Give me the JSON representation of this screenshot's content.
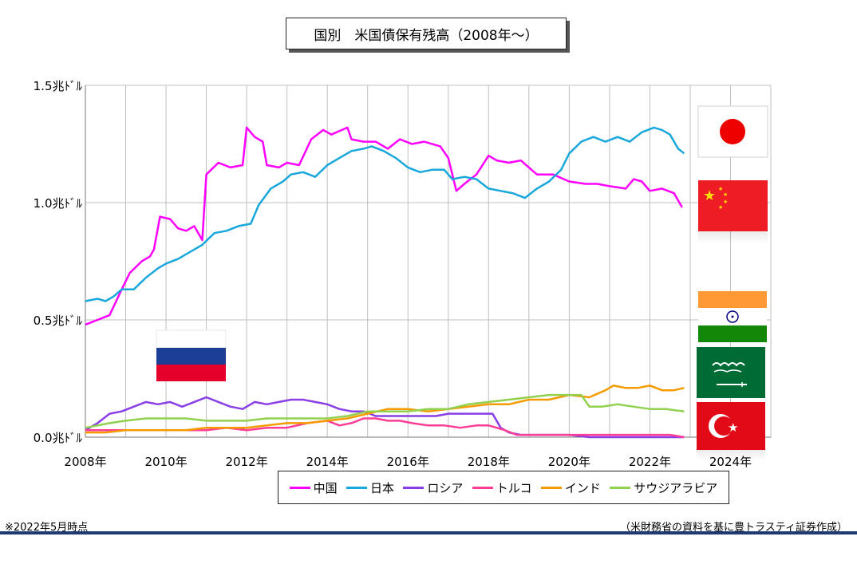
{
  "title": "国別　米国債保有残高（2008年～）",
  "note": "※2022年5月時点",
  "source": "（米財務省の資料を基に豊トラスティ証券作成）",
  "chart_data": {
    "type": "line",
    "ylim": [
      0,
      1.5
    ],
    "xlim": [
      2008,
      2025
    ],
    "y_ticks": [
      0,
      0.5,
      1.0,
      1.5
    ],
    "y_tick_labels": [
      "0.0兆ﾄﾞﾙ",
      "0.5兆ﾄﾞﾙ",
      "1.0兆ﾄﾞﾙ",
      "1.5兆ﾄﾞﾙ"
    ],
    "x_ticks": [
      2008,
      2010,
      2012,
      2014,
      2016,
      2018,
      2020,
      2022,
      2024
    ],
    "x_tick_labels": [
      "2008年",
      "2010年",
      "2012年",
      "2014年",
      "2016年",
      "2018年",
      "2020年",
      "2022年",
      "2024年"
    ],
    "grid": "vertical and horizontal",
    "legend_position": "bottom",
    "series": [
      {
        "name": "中国",
        "color": "#ff00ff",
        "points": [
          [
            2008.0,
            0.48
          ],
          [
            2008.3,
            0.5
          ],
          [
            2008.6,
            0.52
          ],
          [
            2008.9,
            0.63
          ],
          [
            2009.1,
            0.7
          ],
          [
            2009.4,
            0.75
          ],
          [
            2009.6,
            0.77
          ],
          [
            2009.7,
            0.8
          ],
          [
            2009.85,
            0.94
          ],
          [
            2010.1,
            0.93
          ],
          [
            2010.3,
            0.89
          ],
          [
            2010.5,
            0.88
          ],
          [
            2010.7,
            0.9
          ],
          [
            2010.9,
            0.84
          ],
          [
            2011.0,
            1.12
          ],
          [
            2011.3,
            1.17
          ],
          [
            2011.6,
            1.15
          ],
          [
            2011.9,
            1.16
          ],
          [
            2012.0,
            1.32
          ],
          [
            2012.2,
            1.28
          ],
          [
            2012.4,
            1.26
          ],
          [
            2012.5,
            1.16
          ],
          [
            2012.8,
            1.15
          ],
          [
            2013.0,
            1.17
          ],
          [
            2013.3,
            1.16
          ],
          [
            2013.6,
            1.27
          ],
          [
            2013.9,
            1.31
          ],
          [
            2014.1,
            1.29
          ],
          [
            2014.5,
            1.32
          ],
          [
            2014.6,
            1.27
          ],
          [
            2014.9,
            1.26
          ],
          [
            2015.2,
            1.26
          ],
          [
            2015.5,
            1.23
          ],
          [
            2015.8,
            1.27
          ],
          [
            2016.1,
            1.25
          ],
          [
            2016.4,
            1.26
          ],
          [
            2016.8,
            1.24
          ],
          [
            2017.0,
            1.19
          ],
          [
            2017.2,
            1.05
          ],
          [
            2017.4,
            1.08
          ],
          [
            2017.7,
            1.12
          ],
          [
            2018.0,
            1.2
          ],
          [
            2018.2,
            1.18
          ],
          [
            2018.5,
            1.17
          ],
          [
            2018.8,
            1.18
          ],
          [
            2019.0,
            1.15
          ],
          [
            2019.2,
            1.12
          ],
          [
            2019.6,
            1.12
          ],
          [
            2020.0,
            1.09
          ],
          [
            2020.4,
            1.08
          ],
          [
            2020.7,
            1.08
          ],
          [
            2021.0,
            1.07
          ],
          [
            2021.4,
            1.06
          ],
          [
            2021.6,
            1.1
          ],
          [
            2021.8,
            1.09
          ],
          [
            2022.0,
            1.05
          ],
          [
            2022.3,
            1.06
          ],
          [
            2022.6,
            1.04
          ],
          [
            2022.8,
            0.98
          ]
        ]
      },
      {
        "name": "日本",
        "color": "#1aa7db",
        "points": [
          [
            2008.0,
            0.58
          ],
          [
            2008.3,
            0.59
          ],
          [
            2008.5,
            0.58
          ],
          [
            2008.7,
            0.6
          ],
          [
            2008.9,
            0.63
          ],
          [
            2009.2,
            0.63
          ],
          [
            2009.5,
            0.68
          ],
          [
            2009.8,
            0.72
          ],
          [
            2010.0,
            0.74
          ],
          [
            2010.3,
            0.76
          ],
          [
            2010.6,
            0.79
          ],
          [
            2010.9,
            0.82
          ],
          [
            2011.2,
            0.87
          ],
          [
            2011.5,
            0.88
          ],
          [
            2011.8,
            0.9
          ],
          [
            2012.1,
            0.91
          ],
          [
            2012.3,
            0.99
          ],
          [
            2012.6,
            1.06
          ],
          [
            2012.9,
            1.09
          ],
          [
            2013.1,
            1.12
          ],
          [
            2013.4,
            1.13
          ],
          [
            2013.7,
            1.11
          ],
          [
            2014.0,
            1.16
          ],
          [
            2014.3,
            1.19
          ],
          [
            2014.6,
            1.22
          ],
          [
            2014.9,
            1.23
          ],
          [
            2015.1,
            1.24
          ],
          [
            2015.4,
            1.22
          ],
          [
            2015.7,
            1.19
          ],
          [
            2016.0,
            1.15
          ],
          [
            2016.3,
            1.13
          ],
          [
            2016.6,
            1.14
          ],
          [
            2016.9,
            1.14
          ],
          [
            2017.1,
            1.1
          ],
          [
            2017.4,
            1.11
          ],
          [
            2017.7,
            1.1
          ],
          [
            2018.0,
            1.06
          ],
          [
            2018.3,
            1.05
          ],
          [
            2018.6,
            1.04
          ],
          [
            2018.9,
            1.02
          ],
          [
            2019.2,
            1.06
          ],
          [
            2019.5,
            1.09
          ],
          [
            2019.8,
            1.14
          ],
          [
            2020.0,
            1.21
          ],
          [
            2020.3,
            1.26
          ],
          [
            2020.6,
            1.28
          ],
          [
            2020.9,
            1.26
          ],
          [
            2021.2,
            1.28
          ],
          [
            2021.5,
            1.26
          ],
          [
            2021.8,
            1.3
          ],
          [
            2022.1,
            1.32
          ],
          [
            2022.3,
            1.31
          ],
          [
            2022.5,
            1.29
          ],
          [
            2022.7,
            1.23
          ],
          [
            2022.85,
            1.21
          ]
        ]
      },
      {
        "name": "ロシア",
        "color": "#8a3ee6",
        "points": [
          [
            2008.0,
            0.03
          ],
          [
            2008.3,
            0.06
          ],
          [
            2008.6,
            0.1
          ],
          [
            2008.9,
            0.11
          ],
          [
            2009.2,
            0.13
          ],
          [
            2009.5,
            0.15
          ],
          [
            2009.8,
            0.14
          ],
          [
            2010.1,
            0.15
          ],
          [
            2010.4,
            0.13
          ],
          [
            2010.7,
            0.15
          ],
          [
            2011.0,
            0.17
          ],
          [
            2011.3,
            0.15
          ],
          [
            2011.6,
            0.13
          ],
          [
            2011.9,
            0.12
          ],
          [
            2012.2,
            0.15
          ],
          [
            2012.5,
            0.14
          ],
          [
            2012.8,
            0.15
          ],
          [
            2013.1,
            0.16
          ],
          [
            2013.4,
            0.16
          ],
          [
            2013.7,
            0.15
          ],
          [
            2014.0,
            0.14
          ],
          [
            2014.3,
            0.12
          ],
          [
            2014.6,
            0.11
          ],
          [
            2014.9,
            0.11
          ],
          [
            2015.2,
            0.09
          ],
          [
            2015.5,
            0.09
          ],
          [
            2015.8,
            0.09
          ],
          [
            2016.1,
            0.09
          ],
          [
            2016.4,
            0.09
          ],
          [
            2016.7,
            0.09
          ],
          [
            2017.0,
            0.1
          ],
          [
            2017.3,
            0.1
          ],
          [
            2017.6,
            0.1
          ],
          [
            2017.9,
            0.1
          ],
          [
            2018.1,
            0.1
          ],
          [
            2018.3,
            0.04
          ],
          [
            2018.5,
            0.02
          ],
          [
            2018.8,
            0.01
          ],
          [
            2019.2,
            0.01
          ],
          [
            2019.6,
            0.01
          ],
          [
            2020.0,
            0.01
          ],
          [
            2020.5,
            0.0
          ],
          [
            2021.0,
            0.0
          ],
          [
            2021.5,
            0.0
          ],
          [
            2022.0,
            0.0
          ],
          [
            2022.5,
            0.0
          ],
          [
            2022.85,
            0.0
          ]
        ]
      },
      {
        "name": "トルコ",
        "color": "#ff3c96",
        "points": [
          [
            2008.0,
            0.03
          ],
          [
            2008.5,
            0.03
          ],
          [
            2009.0,
            0.03
          ],
          [
            2009.5,
            0.03
          ],
          [
            2010.0,
            0.03
          ],
          [
            2010.5,
            0.03
          ],
          [
            2011.0,
            0.03
          ],
          [
            2011.5,
            0.04
          ],
          [
            2012.0,
            0.03
          ],
          [
            2012.5,
            0.04
          ],
          [
            2013.0,
            0.04
          ],
          [
            2013.5,
            0.06
          ],
          [
            2014.0,
            0.07
          ],
          [
            2014.3,
            0.05
          ],
          [
            2014.6,
            0.06
          ],
          [
            2014.9,
            0.08
          ],
          [
            2015.2,
            0.08
          ],
          [
            2015.5,
            0.07
          ],
          [
            2015.8,
            0.07
          ],
          [
            2016.1,
            0.06
          ],
          [
            2016.5,
            0.05
          ],
          [
            2016.9,
            0.05
          ],
          [
            2017.3,
            0.04
          ],
          [
            2017.7,
            0.05
          ],
          [
            2018.0,
            0.05
          ],
          [
            2018.2,
            0.04
          ],
          [
            2018.4,
            0.03
          ],
          [
            2018.7,
            0.01
          ],
          [
            2019.0,
            0.01
          ],
          [
            2019.5,
            0.01
          ],
          [
            2020.0,
            0.01
          ],
          [
            2020.5,
            0.01
          ],
          [
            2021.0,
            0.01
          ],
          [
            2021.5,
            0.01
          ],
          [
            2022.0,
            0.01
          ],
          [
            2022.5,
            0.01
          ],
          [
            2022.85,
            0.0
          ]
        ]
      },
      {
        "name": "インド",
        "color": "#f59b00",
        "points": [
          [
            2008.0,
            0.02
          ],
          [
            2008.5,
            0.02
          ],
          [
            2009.0,
            0.03
          ],
          [
            2009.5,
            0.03
          ],
          [
            2010.0,
            0.03
          ],
          [
            2010.5,
            0.03
          ],
          [
            2011.0,
            0.04
          ],
          [
            2011.5,
            0.04
          ],
          [
            2012.0,
            0.04
          ],
          [
            2012.5,
            0.05
          ],
          [
            2013.0,
            0.06
          ],
          [
            2013.5,
            0.06
          ],
          [
            2014.0,
            0.07
          ],
          [
            2014.5,
            0.08
          ],
          [
            2015.0,
            0.1
          ],
          [
            2015.5,
            0.12
          ],
          [
            2016.0,
            0.12
          ],
          [
            2016.5,
            0.11
          ],
          [
            2017.0,
            0.12
          ],
          [
            2017.5,
            0.13
          ],
          [
            2018.0,
            0.14
          ],
          [
            2018.5,
            0.14
          ],
          [
            2019.0,
            0.16
          ],
          [
            2019.5,
            0.16
          ],
          [
            2020.0,
            0.18
          ],
          [
            2020.5,
            0.17
          ],
          [
            2020.9,
            0.2
          ],
          [
            2021.1,
            0.22
          ],
          [
            2021.4,
            0.21
          ],
          [
            2021.7,
            0.21
          ],
          [
            2022.0,
            0.22
          ],
          [
            2022.3,
            0.2
          ],
          [
            2022.6,
            0.2
          ],
          [
            2022.85,
            0.21
          ]
        ]
      },
      {
        "name": "サウジアラビア",
        "color": "#92d050",
        "points": [
          [
            2008.0,
            0.04
          ],
          [
            2008.3,
            0.05
          ],
          [
            2008.6,
            0.06
          ],
          [
            2009.0,
            0.07
          ],
          [
            2009.5,
            0.08
          ],
          [
            2010.0,
            0.08
          ],
          [
            2010.5,
            0.08
          ],
          [
            2011.0,
            0.07
          ],
          [
            2011.5,
            0.07
          ],
          [
            2012.0,
            0.07
          ],
          [
            2012.5,
            0.08
          ],
          [
            2013.0,
            0.08
          ],
          [
            2013.5,
            0.08
          ],
          [
            2014.0,
            0.08
          ],
          [
            2014.5,
            0.09
          ],
          [
            2015.0,
            0.11
          ],
          [
            2015.5,
            0.11
          ],
          [
            2016.0,
            0.11
          ],
          [
            2016.5,
            0.12
          ],
          [
            2017.0,
            0.12
          ],
          [
            2017.5,
            0.14
          ],
          [
            2018.0,
            0.15
          ],
          [
            2018.5,
            0.16
          ],
          [
            2019.0,
            0.17
          ],
          [
            2019.5,
            0.18
          ],
          [
            2020.0,
            0.18
          ],
          [
            2020.3,
            0.18
          ],
          [
            2020.5,
            0.13
          ],
          [
            2020.8,
            0.13
          ],
          [
            2021.2,
            0.14
          ],
          [
            2021.6,
            0.13
          ],
          [
            2022.0,
            0.12
          ],
          [
            2022.4,
            0.12
          ],
          [
            2022.85,
            0.11
          ]
        ]
      }
    ]
  }
}
